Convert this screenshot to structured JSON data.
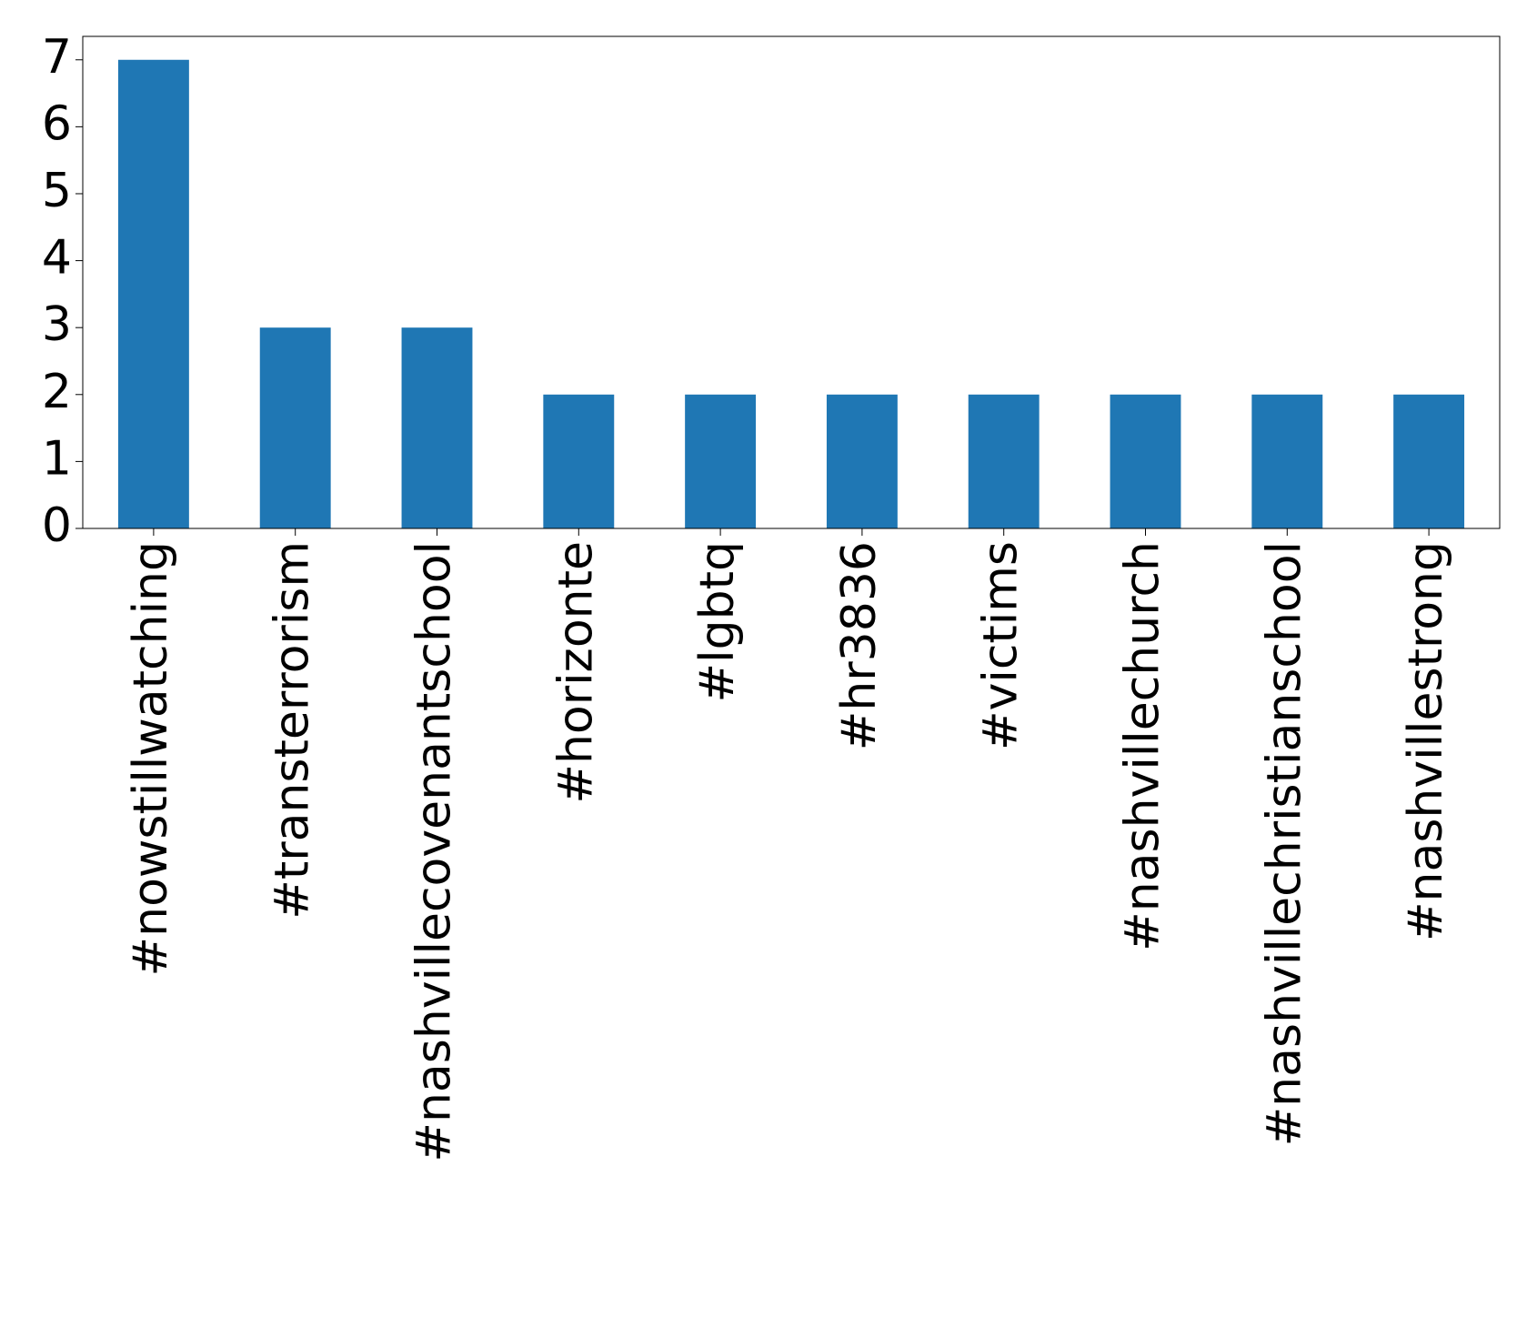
{
  "chart_data": {
    "type": "bar",
    "categories": [
      "#nowstillwatching",
      "#transterrorism",
      "#nashvillecovenantschool",
      "#horizonte",
      "#lgbtq",
      "#hr3836",
      "#victims",
      "#nashvillechurch",
      "#nashvillechristianschool",
      "#nashvillestrong"
    ],
    "values": [
      7,
      3,
      3,
      2,
      2,
      2,
      2,
      2,
      2,
      2
    ],
    "color": "#1f77b4",
    "ylim": [
      0,
      7.35
    ],
    "yticks": [
      0,
      1,
      2,
      3,
      4,
      5,
      6,
      7
    ],
    "grid": false
  }
}
